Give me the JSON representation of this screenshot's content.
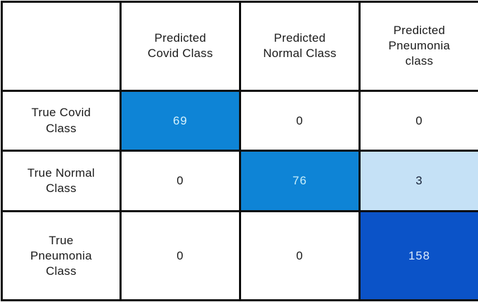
{
  "chart_data": {
    "type": "heatmap",
    "x_labels": [
      "Predicted Covid Class",
      "Predicted Normal Class",
      "Predicted Pneumonia class"
    ],
    "y_labels": [
      "True Covid Class",
      "True Normal Class",
      "True Pneumonia Class"
    ],
    "values": [
      [
        69,
        0,
        0
      ],
      [
        0,
        76,
        3
      ],
      [
        0,
        0,
        158
      ]
    ],
    "legend_position": "none",
    "grid": "on",
    "colors": {
      "diagonal_azure": "#0e84d6",
      "diagonal_deep_blue": "#0b53c8",
      "offdiagonal_light_blue": "#c5e1f6",
      "zero_cell": "#ffffff",
      "border": "#0d0d0d"
    }
  },
  "display": {
    "col_headers": [
      "Predicted\nCovid Class",
      "Predicted\nNormal Class",
      "Predicted\nPneumonia\nclass"
    ],
    "row_headers": [
      "True Covid\nClass",
      "True Normal\nClass",
      "True\nPneumonia\nClass"
    ],
    "cells": [
      [
        {
          "text": "69",
          "bg": "#0e84d6",
          "fg": "#d6f2fc"
        },
        {
          "text": "0",
          "bg": "#ffffff",
          "fg": "#1a1a1a"
        },
        {
          "text": "0",
          "bg": "#ffffff",
          "fg": "#1a1a1a"
        }
      ],
      [
        {
          "text": "0",
          "bg": "#ffffff",
          "fg": "#1a1a1a"
        },
        {
          "text": "76",
          "bg": "#0e84d6",
          "fg": "#c8eefa"
        },
        {
          "text": "3",
          "bg": "#c5e1f6",
          "fg": "#17233a"
        }
      ],
      [
        {
          "text": "0",
          "bg": "#ffffff",
          "fg": "#1a1a1a"
        },
        {
          "text": "0",
          "bg": "#ffffff",
          "fg": "#1a1a1a"
        },
        {
          "text": "158",
          "bg": "#0b53c8",
          "fg": "#dcebfb"
        }
      ]
    ]
  }
}
